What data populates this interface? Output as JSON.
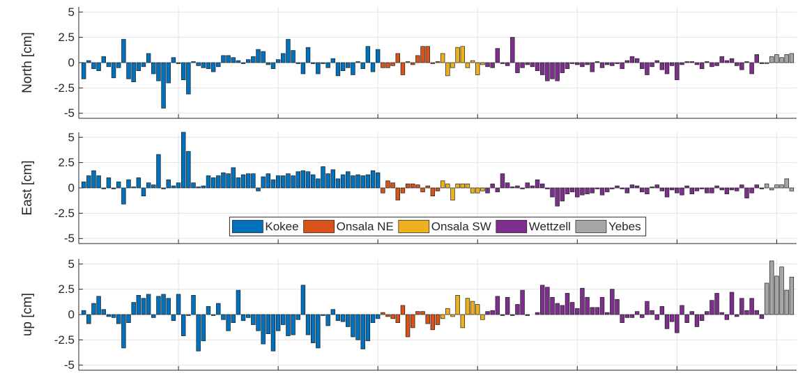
{
  "chart_data": [
    {
      "type": "bar",
      "ylabel": "North [cm]",
      "ylim": [
        -5.5,
        5.5
      ],
      "yticks": [
        -5,
        -2.5,
        0,
        2.5,
        5
      ],
      "xlim": [
        0,
        144
      ],
      "xticks": [
        0,
        20,
        40,
        60,
        80,
        100,
        120,
        140
      ],
      "grid": true,
      "series": [
        {
          "color": "#0072BD",
          "x": [
            1,
            2,
            3,
            4,
            5,
            6,
            7,
            8,
            9,
            10,
            11,
            12,
            13,
            14,
            15,
            16,
            17,
            18,
            19,
            20,
            21,
            22,
            23,
            24,
            25,
            26,
            27,
            28,
            29,
            30,
            31,
            32,
            33,
            34,
            35,
            36,
            37,
            38,
            39,
            40,
            41,
            42,
            43,
            44,
            45,
            46,
            47,
            48,
            49,
            50,
            51,
            52,
            53,
            54,
            55,
            56,
            57,
            58,
            59,
            60
          ],
          "values": [
            -1.6,
            0.2,
            -0.6,
            -0.8,
            0.6,
            -0.4,
            -1.5,
            -0.5,
            2.3,
            -1.6,
            -1.9,
            -0.8,
            -0.4,
            0.9,
            -1.1,
            -1.8,
            -4.5,
            -2.0,
            0.5,
            -0.1,
            -1.7,
            -3.1,
            0.1,
            -0.3,
            -0.5,
            -0.6,
            -0.9,
            -0.4,
            0.7,
            0.7,
            0.5,
            0.2,
            -0.1,
            0.3,
            0.6,
            1.3,
            1.1,
            -0.2,
            -0.6,
            0.3,
            0.9,
            2.3,
            1.2,
            -0.1,
            -1.1,
            1.5,
            -0.1,
            -1.1,
            -0.1,
            -0.5,
            0.4,
            -1.3,
            -0.8,
            -0.5,
            -1.2,
            0.1,
            -0.6,
            1.6,
            -0.9,
            1.3
          ]
        },
        {
          "color": "#D95319",
          "x": [
            61,
            62,
            63,
            64,
            65,
            66,
            67,
            68,
            69,
            70,
            71,
            72
          ],
          "values": [
            -0.5,
            -0.5,
            -0.3,
            0.9,
            -1.2,
            0.1,
            -0.2,
            0.7,
            1.6,
            1.6,
            -0.1,
            0.1
          ]
        },
        {
          "color": "#EDB120",
          "x": [
            73,
            74,
            75,
            76,
            77,
            78,
            79,
            80,
            81
          ],
          "values": [
            0.9,
            -1.3,
            -0.5,
            1.5,
            1.6,
            -0.5,
            0.2,
            -1.2,
            -0.2
          ]
        },
        {
          "color": "#7E2F8E",
          "x": [
            82,
            83,
            84,
            85,
            86,
            87,
            88,
            89,
            90,
            91,
            92,
            93,
            94,
            95,
            96,
            97,
            98,
            99,
            100,
            101,
            102,
            103,
            104,
            105,
            106,
            107,
            108,
            109,
            110,
            111,
            112,
            113,
            114,
            115,
            116,
            117,
            118,
            119,
            120,
            121,
            122,
            123,
            124,
            125,
            126,
            127,
            128,
            129,
            130,
            131,
            132,
            133,
            134,
            135,
            136,
            137
          ],
          "values": [
            -0.4,
            -0.5,
            1.4,
            -0.1,
            -0.3,
            2.5,
            -1.0,
            -0.5,
            -0.2,
            -0.4,
            -0.8,
            -1.2,
            -1.8,
            -1.6,
            -1.8,
            -1.0,
            -0.6,
            -0.1,
            -0.2,
            -0.4,
            -0.2,
            -0.9,
            0.1,
            -0.5,
            -0.2,
            -0.3,
            -0.1,
            -0.6,
            0.2,
            0.6,
            0.4,
            -0.6,
            -1.2,
            -0.4,
            0.2,
            -0.7,
            -1.1,
            -0.3,
            -1.7,
            -0.2,
            0.1,
            0.1,
            -0.2,
            -0.6,
            0.1,
            -0.4,
            -0.3,
            0.6,
            0.2,
            0.4,
            -0.3,
            -0.7,
            0.1,
            -1.1,
            0.8,
            -0.1
          ]
        },
        {
          "color": "#A6A6A6",
          "x": [
            138,
            139,
            140,
            141,
            142,
            143
          ],
          "values": [
            -0.1,
            0.6,
            0.8,
            0.5,
            0.8,
            0.9
          ]
        }
      ]
    },
    {
      "type": "bar",
      "ylabel": "East [cm]",
      "ylim": [
        -5.5,
        5.5
      ],
      "yticks": [
        -5,
        -2.5,
        0,
        2.5,
        5
      ],
      "xlim": [
        0,
        144
      ],
      "xticks": [
        0,
        20,
        40,
        60,
        80,
        100,
        120,
        140
      ],
      "grid": true,
      "legend": "south",
      "series": [
        {
          "name": "Kokee",
          "color": "#0072BD",
          "x": [
            1,
            2,
            3,
            4,
            5,
            6,
            7,
            8,
            9,
            10,
            11,
            12,
            13,
            14,
            15,
            16,
            17,
            18,
            19,
            20,
            21,
            22,
            23,
            24,
            25,
            26,
            27,
            28,
            29,
            30,
            31,
            32,
            33,
            34,
            35,
            36,
            37,
            38,
            39,
            40,
            41,
            42,
            43,
            44,
            45,
            46,
            47,
            48,
            49,
            50,
            51,
            52,
            53,
            54,
            55,
            56,
            57,
            58,
            59,
            60
          ],
          "values": [
            0.6,
            1.2,
            1.7,
            1.2,
            -0.1,
            1.0,
            -0.1,
            0.6,
            -1.6,
            0.8,
            0.1,
            1.0,
            -0.8,
            0.5,
            0.3,
            3.3,
            -0.1,
            0.8,
            0.2,
            0.5,
            5.5,
            3.6,
            0.5,
            0.1,
            0.2,
            1.2,
            1.0,
            1.2,
            1.5,
            1.4,
            2.0,
            1.0,
            1.3,
            1.4,
            1.4,
            -0.3,
            1.1,
            1.4,
            0.8,
            1.2,
            1.2,
            1.4,
            1.2,
            1.6,
            1.7,
            1.6,
            1.3,
            0.9,
            2.1,
            1.4,
            1.8,
            0.9,
            1.3,
            1.6,
            1.2,
            1.3,
            1.2,
            1.3,
            1.7,
            1.5
          ]
        },
        {
          "name": "Onsala NE",
          "color": "#D95319",
          "x": [
            61,
            62,
            63,
            64,
            65,
            66,
            67,
            68,
            69,
            70,
            71,
            72
          ],
          "values": [
            -0.5,
            0.7,
            0.5,
            -1.2,
            -0.5,
            0.4,
            0.4,
            0.3,
            -0.4,
            0.2,
            -0.8,
            -0.3
          ]
        },
        {
          "name": "Onsala SW",
          "color": "#EDB120",
          "x": [
            73,
            74,
            75,
            76,
            77,
            78,
            79,
            80,
            81
          ],
          "values": [
            0.7,
            0.4,
            -1.2,
            0.4,
            0.4,
            0.4,
            -0.5,
            -0.5,
            -0.3
          ]
        },
        {
          "name": "Wettzell",
          "color": "#7E2F8E",
          "x": [
            82,
            83,
            84,
            85,
            86,
            87,
            88,
            89,
            90,
            91,
            92,
            93,
            94,
            95,
            96,
            97,
            98,
            99,
            100,
            101,
            102,
            103,
            104,
            105,
            106,
            107,
            108,
            109,
            110,
            111,
            112,
            113,
            114,
            115,
            116,
            117,
            118,
            119,
            120,
            121,
            122,
            123,
            124,
            125,
            126,
            127,
            128,
            129,
            130,
            131,
            132,
            133,
            134,
            135,
            136,
            137
          ],
          "values": [
            -0.5,
            0.4,
            -0.4,
            1.4,
            0.5,
            0.1,
            0.2,
            -0.1,
            0.5,
            0.2,
            0.8,
            0.4,
            -0.1,
            -0.9,
            -1.8,
            -1.3,
            -0.6,
            -0.4,
            -0.9,
            -0.7,
            -0.6,
            -0.5,
            -0.1,
            -0.7,
            -0.4,
            -0.1,
            0.2,
            -0.1,
            -0.5,
            0.3,
            0.2,
            -0.4,
            -0.6,
            0.1,
            0.3,
            -0.3,
            -0.9,
            -0.2,
            -0.5,
            -0.7,
            0.2,
            -0.6,
            -0.3,
            -0.1,
            -0.5,
            -0.5,
            0.2,
            -0.2,
            -0.6,
            -0.2,
            -0.3,
            0.3,
            -1.0,
            -0.5,
            0.3,
            -0.1
          ]
        },
        {
          "name": "Yebes",
          "color": "#A6A6A6",
          "x": [
            138,
            139,
            140,
            141,
            142,
            143
          ],
          "values": [
            0.4,
            -0.2,
            0.3,
            0.3,
            0.9,
            -0.3
          ]
        }
      ]
    },
    {
      "type": "bar",
      "ylabel": "up [cm]",
      "ylim": [
        -5.5,
        5.5
      ],
      "yticks": [
        -5,
        -2.5,
        0,
        2.5,
        5
      ],
      "xlim": [
        0,
        144
      ],
      "xticks": [
        0,
        20,
        40,
        60,
        80,
        100,
        120,
        140
      ],
      "grid": true,
      "series": [
        {
          "color": "#0072BD",
          "x": [
            1,
            2,
            3,
            4,
            5,
            6,
            7,
            8,
            9,
            10,
            11,
            12,
            13,
            14,
            15,
            16,
            17,
            18,
            19,
            20,
            21,
            22,
            23,
            24,
            25,
            26,
            27,
            28,
            29,
            30,
            31,
            32,
            33,
            34,
            35,
            36,
            37,
            38,
            39,
            40,
            41,
            42,
            43,
            44,
            45,
            46,
            47,
            48,
            49,
            50,
            51,
            52,
            53,
            54,
            55,
            56,
            57,
            58,
            59,
            60
          ],
          "values": [
            0.4,
            -0.9,
            1.1,
            1.8,
            0.5,
            -0.2,
            -0.3,
            -0.9,
            -3.3,
            -0.8,
            1.2,
            1.9,
            1.6,
            2.0,
            -0.3,
            1.8,
            2.0,
            1.6,
            -0.6,
            2.0,
            -2.1,
            -0.1,
            1.9,
            -3.6,
            -2.6,
            0.8,
            -0.1,
            1.1,
            -0.5,
            -1.6,
            -0.8,
            2.4,
            -0.6,
            -0.3,
            -1.0,
            -1.6,
            -2.9,
            -1.9,
            -3.6,
            -1.6,
            -1.0,
            -2.1,
            -2.0,
            -0.5,
            2.9,
            -2.0,
            -2.8,
            -3.3,
            -0.1,
            -1.1,
            0.5,
            -0.6,
            -0.7,
            -1.2,
            -2.2,
            -2.5,
            -3.4,
            -2.6,
            -0.8,
            -0.4
          ]
        },
        {
          "color": "#D95319",
          "x": [
            61,
            62,
            63,
            64,
            65,
            66,
            67,
            68,
            69,
            70,
            71,
            72
          ],
          "values": [
            0.2,
            -0.2,
            -0.4,
            -0.8,
            0.9,
            -2.2,
            -1.3,
            0.3,
            0.3,
            -0.9,
            -1.5,
            -1.0
          ]
        },
        {
          "color": "#EDB120",
          "x": [
            73,
            74,
            75,
            76,
            77,
            78,
            79,
            80,
            81
          ],
          "values": [
            -0.4,
            0.6,
            -0.2,
            1.9,
            -1.3,
            1.6,
            1.3,
            1.0,
            -0.5
          ]
        },
        {
          "color": "#7E2F8E",
          "x": [
            82,
            83,
            84,
            85,
            86,
            87,
            88,
            89,
            90,
            91,
            92,
            93,
            94,
            95,
            96,
            97,
            98,
            99,
            100,
            101,
            102,
            103,
            104,
            105,
            106,
            107,
            108,
            109,
            110,
            111,
            112,
            113,
            114,
            115,
            116,
            117,
            118,
            119,
            120,
            121,
            122,
            123,
            124,
            125,
            126,
            127,
            128,
            129,
            130,
            131,
            132,
            133,
            134,
            135,
            136,
            137
          ],
          "values": [
            0.3,
            0.4,
            1.8,
            -0.1,
            1.7,
            -0.1,
            1.0,
            2.4,
            -0.1,
            0.0,
            0.2,
            2.9,
            2.7,
            1.7,
            1.1,
            0.9,
            2.1,
            1.2,
            0.6,
            2.6,
            1.7,
            0.7,
            0.7,
            1.7,
            0.2,
            2.5,
            1.5,
            -0.8,
            -0.3,
            -0.3,
            0.3,
            -0.3,
            1.3,
            0.4,
            -0.5,
            0.8,
            -1.4,
            -0.7,
            -1.8,
            0.9,
            -0.8,
            0.3,
            -1.2,
            -0.6,
            0.3,
            1.4,
            2.1,
            0.2,
            -0.5,
            2.2,
            -0.2,
            1.6,
            0.4,
            1.6,
            0.4,
            -0.4
          ]
        },
        {
          "color": "#A6A6A6",
          "x": [
            138,
            139,
            140,
            141,
            142,
            143
          ],
          "values": [
            3.1,
            5.3,
            3.8,
            4.7,
            2.4,
            3.7
          ]
        }
      ]
    }
  ]
}
